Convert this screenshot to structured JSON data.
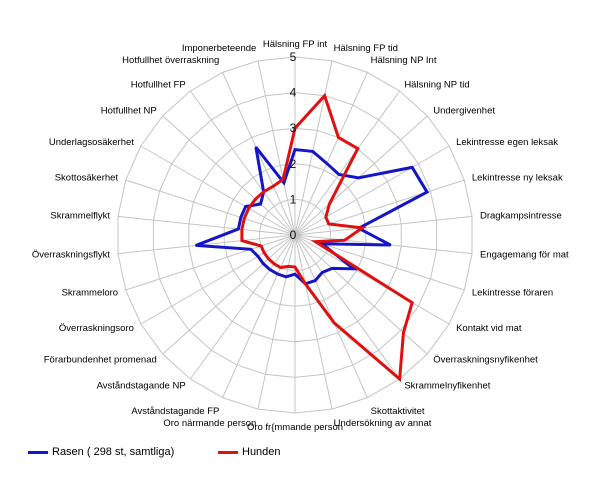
{
  "chart_data": {
    "type": "radar",
    "rmax": 5,
    "ticks": [
      "0",
      "1",
      "2",
      "3",
      "4",
      "5"
    ],
    "categories": [
      "Hälsning FP int",
      "Hälsning FP tid",
      "Hälsning NP Int",
      "Hälsning NP tid",
      "Undergivenhet",
      "Lekintresse egen leksak",
      "Lekintresse ny leksak",
      "Dragkampsintresse",
      "Engagemang för mat",
      "Lekintresse föraren",
      "Kontakt vid mat",
      "Överraskningsnyfikenhet",
      "Skrammelnyfikenhet",
      "Skottaktivitet",
      "Undersökning av annat",
      "Oro fr{mmande person",
      "Oro närmande person",
      "Avståndstagande FP",
      "Avståndstagande NP",
      "Förarbundenhet promenad",
      "Överraskningsoro",
      "Skrammeloro",
      "Överraskningsflykt",
      "Skrammelflykt",
      "Skottosäkerhet",
      "Underlagsosäkerhet",
      "Hotfullhet NP",
      "Hotfullhet FP",
      "Hotfullhet överraskning",
      "Imponerbeteende"
    ],
    "series": [
      {
        "name": "Rasen ( 298 st, samtliga)",
        "color": "#1515c8",
        "values": [
          2.4,
          2.4,
          2.2,
          2.1,
          2.4,
          3.8,
          3.9,
          1.8,
          2.7,
          0.8,
          1.9,
          1.4,
          1.3,
          1.4,
          1.4,
          1.1,
          1.2,
          1.2,
          1.2,
          1.2,
          1.2,
          1.3,
          2.8,
          1.6,
          1.6,
          1.6,
          1.3,
          1.5,
          2.7,
          1.5
        ]
      },
      {
        "name": "Hunden",
        "color": "#e01010",
        "values": [
          3.0,
          4.0,
          3.0,
          3.0,
          1.3,
          1.0,
          1.0,
          1.9,
          1.4,
          0.6,
          3.8,
          4.1,
          5.0,
          2.7,
          1.4,
          0.9,
          0.9,
          1.0,
          1.0,
          1.0,
          1.0,
          1.0,
          1.5,
          1.5,
          1.5,
          1.5,
          1.5,
          1.5,
          1.5,
          1.6
        ]
      }
    ],
    "grid": true,
    "legend": "bottom-left"
  }
}
